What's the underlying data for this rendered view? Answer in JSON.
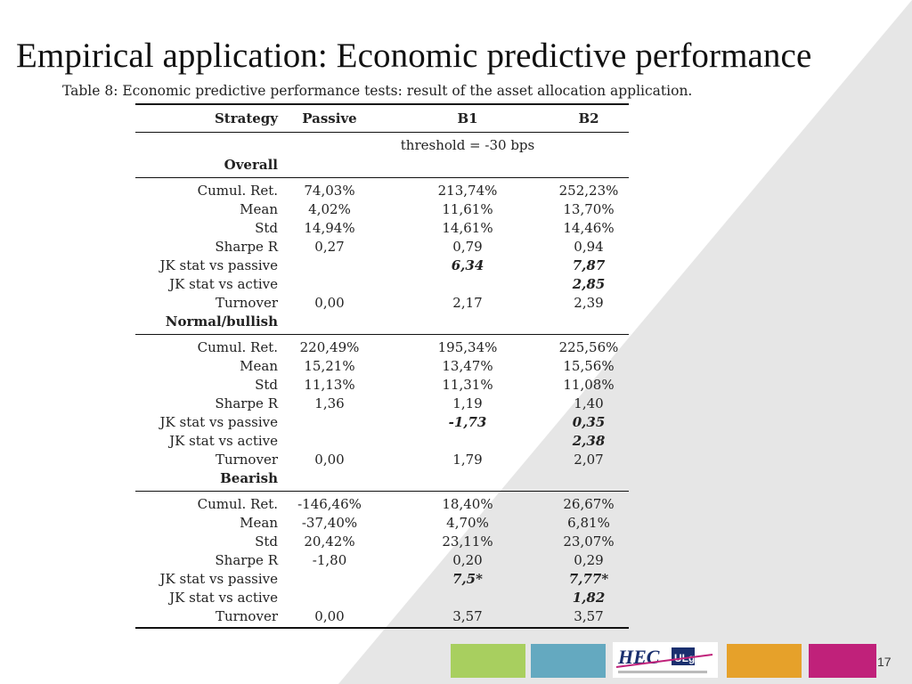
{
  "slide": {
    "title": "Empirical application: Economic predictive performance",
    "caption": "Table 8: Economic predictive performance tests: result of the asset allocation application.",
    "page_number": "17",
    "logo_text": "HEC ULg",
    "colors": {
      "background": "#ffffff",
      "shape": "#e6e6e6",
      "bar_green": "#a8cf5f",
      "bar_blue": "#64a9c0",
      "bar_orange": "#e6a12a",
      "bar_magenta": "#c0217a"
    }
  },
  "table": {
    "headers": [
      "Strategy",
      "Passive",
      "B1",
      "B2"
    ],
    "threshold": "threshold = -30 bps",
    "sections": [
      {
        "name": "Overall",
        "rows": [
          {
            "label": "Cumul. Ret.",
            "passive": "74,03%",
            "b1": "213,74%",
            "b2": "252,23%"
          },
          {
            "label": "Mean",
            "passive": "4,02%",
            "b1": "11,61%",
            "b2": "13,70%"
          },
          {
            "label": "Std",
            "passive": "14,94%",
            "b1": "14,61%",
            "b2": "14,46%"
          },
          {
            "label": "Sharpe R",
            "passive": "0,27",
            "b1": "0,79",
            "b2": "0,94"
          },
          {
            "label": "JK stat vs passive",
            "passive": "",
            "b1": "6,34",
            "b2": "7,87"
          },
          {
            "label": "JK stat vs active",
            "passive": "",
            "b1": "",
            "b2": "2,85"
          },
          {
            "label": "Turnover",
            "passive": "0,00",
            "b1": "2,17",
            "b2": "2,39"
          }
        ]
      },
      {
        "name": "Normal/bullish",
        "rows": [
          {
            "label": "Cumul. Ret.",
            "passive": "220,49%",
            "b1": "195,34%",
            "b2": "225,56%"
          },
          {
            "label": "Mean",
            "passive": "15,21%",
            "b1": "13,47%",
            "b2": "15,56%"
          },
          {
            "label": "Std",
            "passive": "11,13%",
            "b1": "11,31%",
            "b2": "11,08%"
          },
          {
            "label": "Sharpe R",
            "passive": "1,36",
            "b1": "1,19",
            "b2": "1,40"
          },
          {
            "label": "JK stat vs passive",
            "passive": "",
            "b1": "-1,73",
            "b2": "0,35"
          },
          {
            "label": "JK stat vs active",
            "passive": "",
            "b1": "",
            "b2": "2,38"
          },
          {
            "label": "Turnover",
            "passive": "0,00",
            "b1": "1,79",
            "b2": "2,07"
          }
        ]
      },
      {
        "name": "Bearish",
        "rows": [
          {
            "label": "Cumul. Ret.",
            "passive": "-146,46%",
            "b1": "18,40%",
            "b2": "26,67%"
          },
          {
            "label": "Mean",
            "passive": "-37,40%",
            "b1": "4,70%",
            "b2": "6,81%"
          },
          {
            "label": "Std",
            "passive": "20,42%",
            "b1": "23,11%",
            "b2": "23,07%"
          },
          {
            "label": "Sharpe R",
            "passive": "-1,80",
            "b1": "0,20",
            "b2": "0,29"
          },
          {
            "label": "JK stat vs passive",
            "passive": "",
            "b1": "7,5*",
            "b2": "7,77*"
          },
          {
            "label": "JK stat vs active",
            "passive": "",
            "b1": "",
            "b2": "1,82"
          },
          {
            "label": "Turnover",
            "passive": "0,00",
            "b1": "3,57",
            "b2": "3,57"
          }
        ]
      }
    ]
  }
}
